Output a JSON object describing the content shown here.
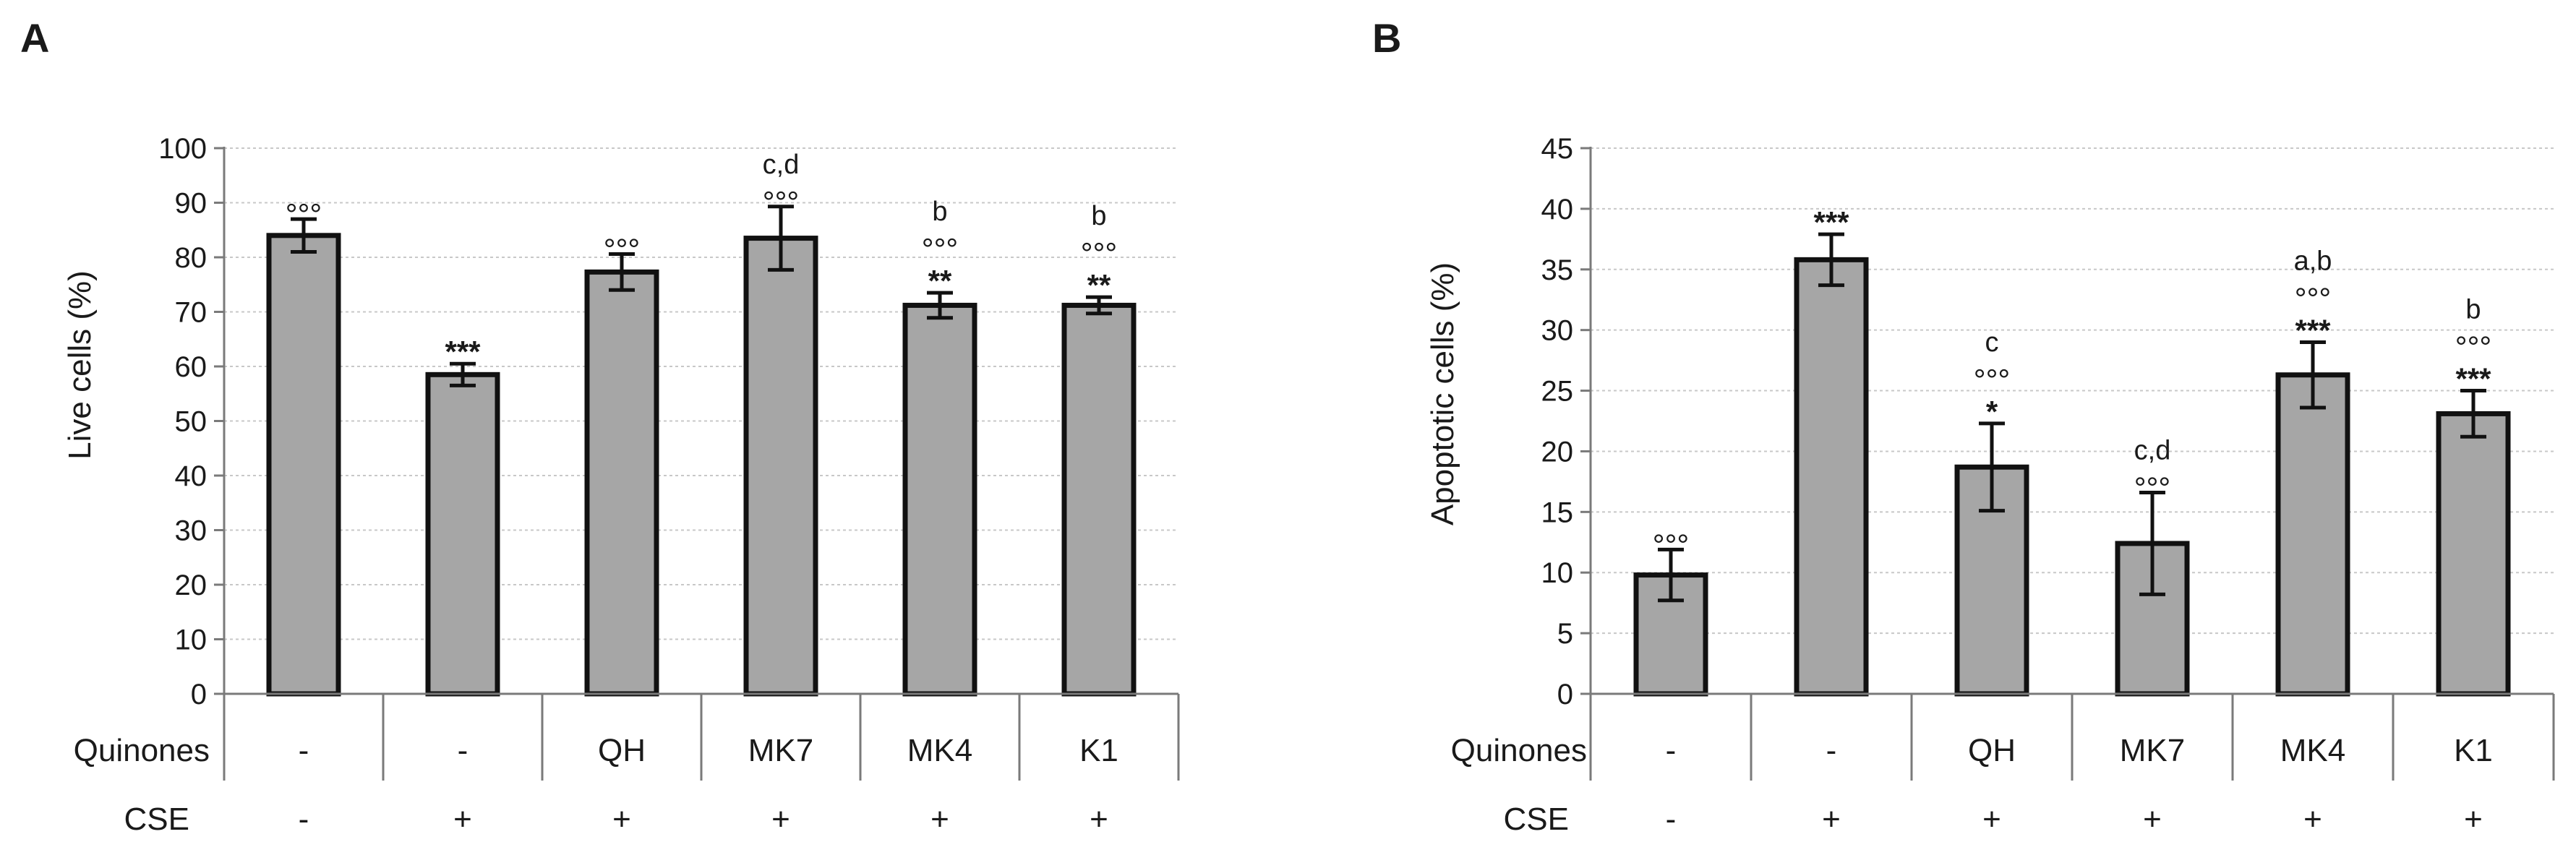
{
  "chart_data": [
    {
      "panel": "A",
      "type": "bar",
      "ylabel": "Live cells (%)",
      "ylim": [
        0,
        100
      ],
      "yticks": [
        0,
        10,
        20,
        30,
        40,
        50,
        60,
        70,
        80,
        90,
        100
      ],
      "grid": true,
      "row_labels": {
        "quinones": "Quinones",
        "cse": "CSE"
      },
      "quinones": [
        "-",
        "-",
        "QH",
        "MK7",
        "MK4",
        "K1"
      ],
      "cse": [
        "-",
        "+",
        "+",
        "+",
        "+",
        "+"
      ],
      "values": [
        84,
        58.5,
        77.3,
        83.5,
        71.2,
        71.2
      ],
      "errors": [
        3,
        2,
        3.3,
        5.8,
        2.3,
        1.5
      ],
      "annotations": [
        {
          "letters": "",
          "circles": "°°°",
          "stars": ""
        },
        {
          "letters": "",
          "circles": "",
          "stars": "***"
        },
        {
          "letters": "",
          "circles": "°°°",
          "stars": ""
        },
        {
          "letters": "c,d",
          "circles": "°°°",
          "stars": ""
        },
        {
          "letters": "b",
          "circles": "°°°",
          "stars": "**"
        },
        {
          "letters": "b",
          "circles": "°°°",
          "stars": "**"
        }
      ]
    },
    {
      "panel": "B",
      "type": "bar",
      "ylabel": "Apoptotic cells (%)",
      "ylim": [
        0,
        45
      ],
      "yticks": [
        0,
        5,
        10,
        15,
        20,
        25,
        30,
        35,
        40,
        45
      ],
      "grid": true,
      "row_labels": {
        "quinones": "Quinones",
        "cse": "CSE"
      },
      "quinones": [
        "-",
        "-",
        "QH",
        "MK7",
        "MK4",
        "K1"
      ],
      "cse": [
        "-",
        "+",
        "+",
        "+",
        "+",
        "+"
      ],
      "values": [
        9.8,
        35.8,
        18.7,
        12.4,
        26.3,
        23.1
      ],
      "errors": [
        2.1,
        2.1,
        3.6,
        4.2,
        2.7,
        1.9
      ],
      "annotations": [
        {
          "letters": "",
          "circles": "°°°",
          "stars": ""
        },
        {
          "letters": "",
          "circles": "",
          "stars": "***"
        },
        {
          "letters": "c",
          "circles": "°°°",
          "stars": "*"
        },
        {
          "letters": "c,d",
          "circles": "°°°",
          "stars": ""
        },
        {
          "letters": "a,b",
          "circles": "°°°",
          "stars": "***"
        },
        {
          "letters": "b",
          "circles": "°°°",
          "stars": "***"
        }
      ]
    }
  ]
}
